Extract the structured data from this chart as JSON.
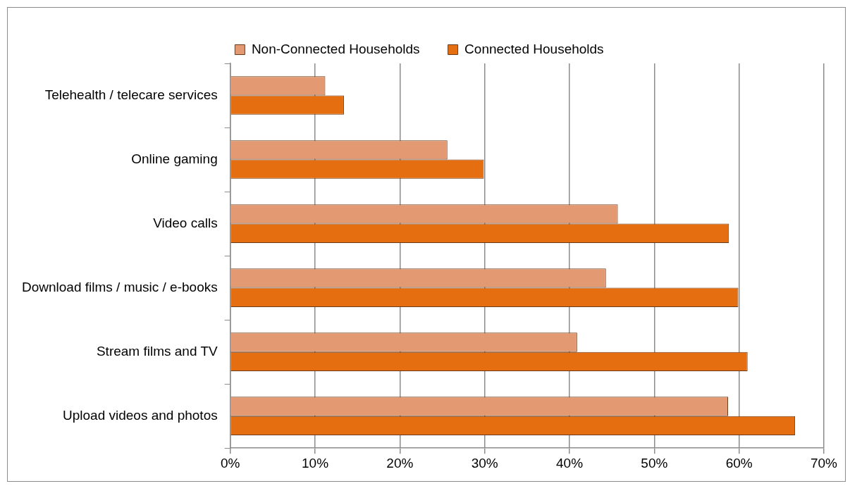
{
  "chart_data": {
    "type": "bar",
    "orientation": "horizontal",
    "categories": [
      "Telehealth / telecare services",
      "Online gaming",
      "Video calls",
      "Download films / music / e-books",
      "Stream films and TV",
      "Upload videos and photos"
    ],
    "series": [
      {
        "name": "Non-Connected Households",
        "color": "#e39a72",
        "values": [
          11.2,
          25.6,
          45.7,
          44.3,
          40.9,
          58.7
        ]
      },
      {
        "name": "Connected Households",
        "color": "#e56f10",
        "values": [
          13.4,
          29.9,
          58.8,
          59.9,
          61.0,
          66.6
        ]
      }
    ],
    "xlim": [
      0,
      70
    ],
    "xticks": [
      {
        "value": 0,
        "label": "0%"
      },
      {
        "value": 10,
        "label": "10%"
      },
      {
        "value": 20,
        "label": "20%"
      },
      {
        "value": 30,
        "label": "30%"
      },
      {
        "value": 40,
        "label": "40%"
      },
      {
        "value": 50,
        "label": "50%"
      },
      {
        "value": 60,
        "label": "60%"
      },
      {
        "value": 70,
        "label": "70%"
      }
    ],
    "grid": "x",
    "legend": "top"
  }
}
